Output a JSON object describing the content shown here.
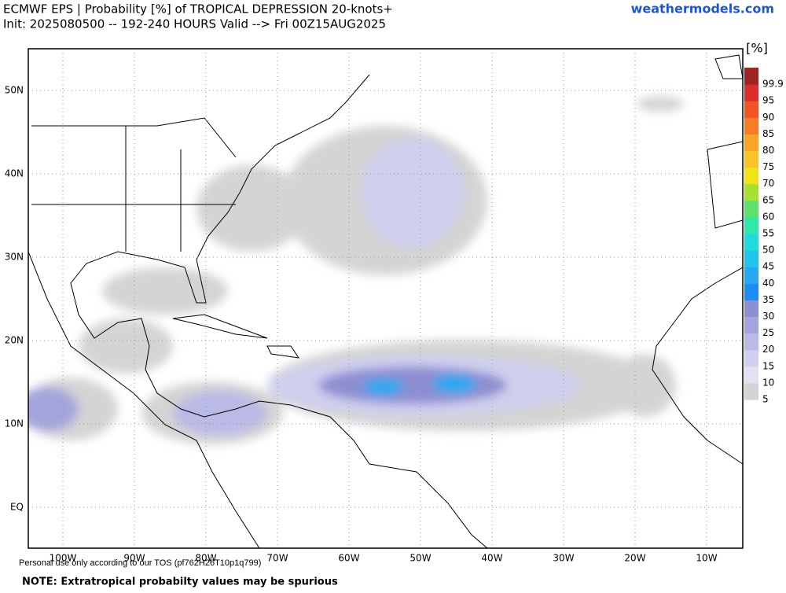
{
  "header": {
    "title": "ECMWF EPS | Probability [%] of TROPICAL DEPRESSION 20-knots+",
    "subtitle": "Init: 2025080500 -- 192-240 HOURS Valid --> Fri 00Z15AUG2025",
    "source": "weathermodels.com"
  },
  "map": {
    "lat_labels": [
      "50N",
      "40N",
      "30N",
      "20N",
      "10N",
      "EQ"
    ],
    "lon_labels": [
      "100W",
      "90W",
      "80W",
      "70W",
      "60W",
      "50W",
      "40W",
      "30W",
      "20W",
      "10W"
    ]
  },
  "colorbar": {
    "unit": "[%]",
    "levels": [
      {
        "label": "5",
        "color": "#d4d4d4"
      },
      {
        "label": "10",
        "color": "#e2e2f2"
      },
      {
        "label": "15",
        "color": "#cfcfee"
      },
      {
        "label": "20",
        "color": "#babae6"
      },
      {
        "label": "25",
        "color": "#a4a4dc"
      },
      {
        "label": "30",
        "color": "#8e8ed2"
      },
      {
        "label": "35",
        "color": "#1e8cf0"
      },
      {
        "label": "40",
        "color": "#28a8f0"
      },
      {
        "label": "45",
        "color": "#22c4ec"
      },
      {
        "label": "50",
        "color": "#20dcd8"
      },
      {
        "label": "55",
        "color": "#30e8a8"
      },
      {
        "label": "60",
        "color": "#5ee070"
      },
      {
        "label": "65",
        "color": "#a8e030"
      },
      {
        "label": "70",
        "color": "#eee418"
      },
      {
        "label": "75",
        "color": "#f8c428"
      },
      {
        "label": "80",
        "color": "#f8a428"
      },
      {
        "label": "85",
        "color": "#f87c28"
      },
      {
        "label": "90",
        "color": "#f05424"
      },
      {
        "label": "95",
        "color": "#dc2c2c"
      },
      {
        "label": "99.9",
        "color": "#a02424"
      }
    ]
  },
  "footer": {
    "tos": "Personal use only according to our TOS (pf762H26T10p1q799)",
    "note": "NOTE: Extratropical probabilty values may be spurious"
  }
}
